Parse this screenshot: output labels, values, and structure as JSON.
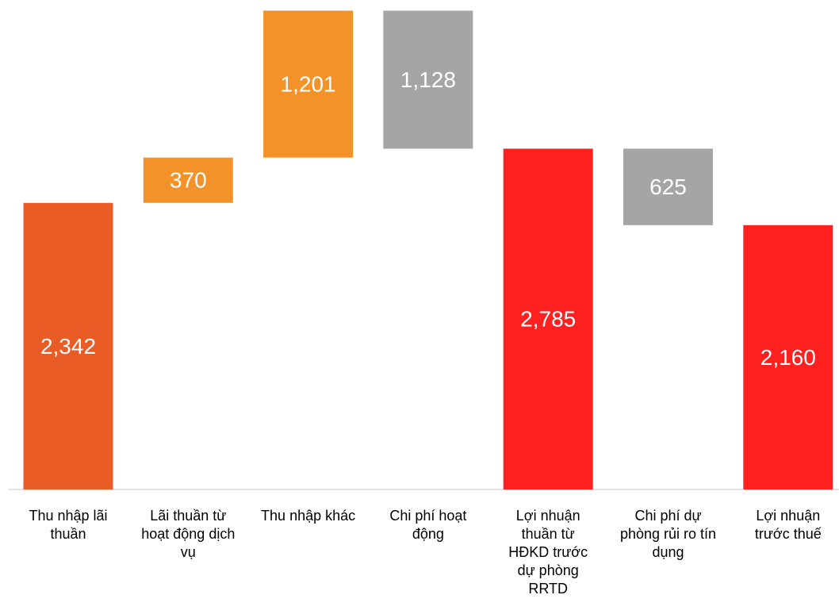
{
  "chart_data": {
    "type": "waterfall",
    "categories": [
      "Thu nhập lãi thuần",
      "Lãi thuần từ hoạt động dịch vụ",
      "Thu nhập khác",
      "Chi phí hoạt động",
      "Lợi nhuận thuần từ HĐKD trước dự phòng RRTD",
      "Chi phí dự phòng rủi ro tín dụng",
      "Lợi nhuận trước thuế"
    ],
    "values": [
      2342,
      370,
      1201,
      1128,
      2785,
      625,
      2160
    ],
    "value_labels": [
      "2,342",
      "370",
      "1,201",
      "1,128",
      "2,785",
      "625",
      "2,160"
    ],
    "kinds": [
      "total",
      "increase",
      "increase",
      "decrease",
      "total",
      "decrease",
      "total"
    ],
    "colors": [
      "#e95c25",
      "#f39229",
      "#f39229",
      "#a5a5a5",
      "#ff2020",
      "#a5a5a5",
      "#ff2020"
    ],
    "ylim": [
      0,
      4000
    ]
  }
}
